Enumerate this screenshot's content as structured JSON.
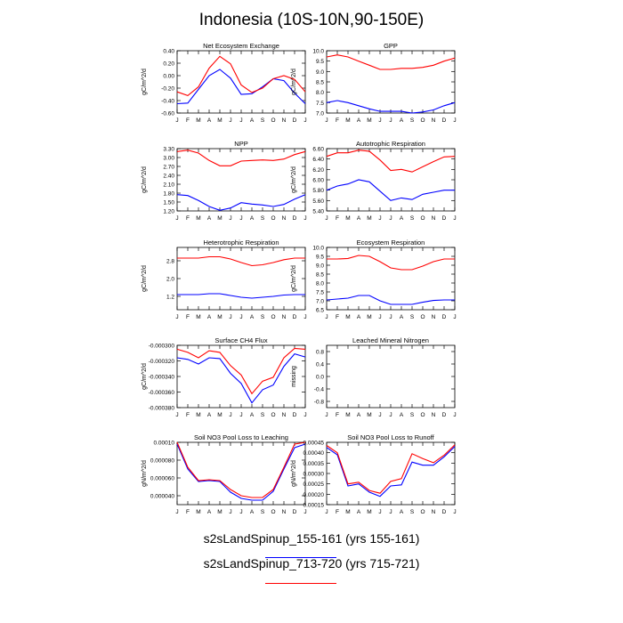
{
  "title": "Indonesia (10S-10N,90-150E)",
  "legend": [
    {
      "label": "s2sLandSpinup_155-161 (yrs 155-161)",
      "color": "#0000ff"
    },
    {
      "label": "s2sLandSpinup_713-720 (yrs 715-721)",
      "color": "#ff0000"
    }
  ],
  "chart_data": [
    {
      "type": "line",
      "title": "Net Ecosystem Exchange",
      "ylabel": "gC/m^2/d",
      "x": [
        "J",
        "F",
        "M",
        "A",
        "M",
        "J",
        "J",
        "A",
        "S",
        "O",
        "N",
        "D",
        "J"
      ],
      "ylim": [
        -0.6,
        0.4
      ],
      "yticks": [
        -0.6,
        -0.4,
        -0.2,
        0.0,
        0.2,
        0.4
      ],
      "yticklabels": [
        "-0.60",
        "-0.40",
        "-0.20",
        "0.00",
        "0.20",
        "0.40"
      ],
      "series": [
        {
          "color": "#0000ff",
          "values": [
            -0.45,
            -0.44,
            -0.22,
            0.0,
            0.1,
            -0.04,
            -0.3,
            -0.29,
            -0.18,
            -0.05,
            -0.08,
            -0.28,
            -0.45
          ]
        },
        {
          "color": "#ff0000",
          "values": [
            -0.26,
            -0.32,
            -0.18,
            0.12,
            0.31,
            0.19,
            -0.15,
            -0.27,
            -0.2,
            -0.05,
            0.0,
            -0.06,
            -0.26
          ]
        }
      ]
    },
    {
      "type": "line",
      "title": "GPP",
      "ylabel": "gC/m^2/d",
      "x": [
        "J",
        "F",
        "M",
        "A",
        "M",
        "J",
        "J",
        "A",
        "S",
        "O",
        "N",
        "D",
        "J"
      ],
      "ylim": [
        7.0,
        10.0
      ],
      "yticks": [
        7.0,
        7.5,
        8.0,
        8.5,
        9.0,
        9.5,
        10.0
      ],
      "yticklabels": [
        "7.0",
        "7.5",
        "8.0",
        "8.5",
        "9.0",
        "9.5",
        "10.0"
      ],
      "series": [
        {
          "color": "#0000ff",
          "values": [
            7.5,
            7.6,
            7.5,
            7.35,
            7.2,
            7.08,
            7.08,
            7.08,
            7.0,
            7.05,
            7.15,
            7.35,
            7.5
          ]
        },
        {
          "color": "#ff0000",
          "values": [
            9.7,
            9.8,
            9.7,
            9.5,
            9.3,
            9.1,
            9.1,
            9.15,
            9.15,
            9.2,
            9.3,
            9.5,
            9.65
          ]
        }
      ]
    },
    {
      "type": "line",
      "title": "NPP",
      "ylabel": "gC/m^2/d",
      "x": [
        "J",
        "F",
        "M",
        "A",
        "M",
        "J",
        "J",
        "A",
        "S",
        "O",
        "N",
        "D",
        "J"
      ],
      "ylim": [
        1.2,
        3.3
      ],
      "yticks": [
        1.2,
        1.5,
        1.8,
        2.1,
        2.4,
        2.7,
        3.0,
        3.3
      ],
      "yticklabels": [
        "1.20",
        "1.50",
        "1.80",
        "2.10",
        "2.40",
        "2.70",
        "3.00",
        "3.30"
      ],
      "series": [
        {
          "color": "#0000ff",
          "values": [
            1.75,
            1.72,
            1.55,
            1.35,
            1.22,
            1.3,
            1.48,
            1.43,
            1.4,
            1.35,
            1.42,
            1.6,
            1.75
          ]
        },
        {
          "color": "#ff0000",
          "values": [
            3.2,
            3.25,
            3.15,
            2.9,
            2.72,
            2.72,
            2.88,
            2.9,
            2.92,
            2.9,
            2.95,
            3.1,
            3.2
          ]
        }
      ]
    },
    {
      "type": "line",
      "title": "Autotrophic Respiration",
      "ylabel": "gC/m^2/d",
      "x": [
        "J",
        "F",
        "M",
        "A",
        "M",
        "J",
        "J",
        "A",
        "S",
        "O",
        "N",
        "D",
        "J"
      ],
      "ylim": [
        5.4,
        6.6
      ],
      "yticks": [
        5.4,
        5.6,
        5.8,
        6.0,
        6.2,
        6.4,
        6.6
      ],
      "yticklabels": [
        "5.40",
        "5.60",
        "5.80",
        "6.00",
        "6.20",
        "6.40",
        "6.60"
      ],
      "series": [
        {
          "color": "#0000ff",
          "values": [
            5.8,
            5.88,
            5.92,
            6.0,
            5.96,
            5.78,
            5.6,
            5.65,
            5.62,
            5.72,
            5.76,
            5.8,
            5.8
          ]
        },
        {
          "color": "#ff0000",
          "values": [
            6.45,
            6.52,
            6.52,
            6.57,
            6.55,
            6.38,
            6.18,
            6.2,
            6.15,
            6.25,
            6.35,
            6.44,
            6.45
          ]
        }
      ]
    },
    {
      "type": "line",
      "title": "Heterotrophic Respiration",
      "ylabel": "gC/m^2/d",
      "x": [
        "J",
        "F",
        "M",
        "A",
        "M",
        "J",
        "J",
        "A",
        "S",
        "O",
        "N",
        "D",
        "J"
      ],
      "ylim": [
        0.6,
        3.4
      ],
      "yticks": [
        1.2,
        2.0,
        2.8
      ],
      "yticklabels": [
        "1.2",
        "2.0",
        "2.8"
      ],
      "series": [
        {
          "color": "#0000ff",
          "values": [
            1.28,
            1.28,
            1.28,
            1.32,
            1.32,
            1.24,
            1.16,
            1.12,
            1.16,
            1.2,
            1.26,
            1.28,
            1.28
          ]
        },
        {
          "color": "#ff0000",
          "values": [
            2.92,
            2.92,
            2.92,
            2.98,
            2.98,
            2.88,
            2.72,
            2.58,
            2.62,
            2.72,
            2.85,
            2.92,
            2.92
          ]
        }
      ]
    },
    {
      "type": "line",
      "title": "Ecosystem Respiration",
      "ylabel": "gC/m^2/d",
      "x": [
        "J",
        "F",
        "M",
        "A",
        "M",
        "J",
        "J",
        "A",
        "S",
        "O",
        "N",
        "D",
        "J"
      ],
      "ylim": [
        6.5,
        10.0
      ],
      "yticks": [
        6.5,
        7.0,
        7.5,
        8.0,
        8.5,
        9.0,
        9.5,
        10.0
      ],
      "yticklabels": [
        "6.5",
        "7.0",
        "7.5",
        "8.0",
        "8.5",
        "9.0",
        "9.5",
        "10.0"
      ],
      "series": [
        {
          "color": "#0000ff",
          "values": [
            7.05,
            7.1,
            7.15,
            7.3,
            7.3,
            7.0,
            6.8,
            6.8,
            6.8,
            6.92,
            7.02,
            7.05,
            7.05
          ]
        },
        {
          "color": "#ff0000",
          "values": [
            9.35,
            9.35,
            9.38,
            9.55,
            9.5,
            9.2,
            8.85,
            8.75,
            8.75,
            8.95,
            9.2,
            9.35,
            9.35
          ]
        }
      ]
    },
    {
      "type": "line",
      "title": "Surface CH4 Flux",
      "ylabel": "gC/m^2/d",
      "x": [
        "J",
        "F",
        "M",
        "A",
        "M",
        "J",
        "J",
        "A",
        "S",
        "O",
        "N",
        "D",
        "J"
      ],
      "ylim": [
        -0.00038,
        -0.0003
      ],
      "yticks": [
        -0.00038,
        -0.00036,
        -0.00034,
        -0.00032,
        -0.0003
      ],
      "yticklabels": [
        "-0.000380",
        "-0.000360",
        "-0.000340",
        "-0.000320",
        "-0.000300"
      ],
      "series": [
        {
          "color": "#0000ff",
          "values": [
            -0.000316,
            -0.000318,
            -0.000324,
            -0.000316,
            -0.000317,
            -0.000336,
            -0.000349,
            -0.000374,
            -0.000357,
            -0.000351,
            -0.000327,
            -0.000311,
            -0.000315
          ]
        },
        {
          "color": "#ff0000",
          "values": [
            -0.000305,
            -0.000309,
            -0.000316,
            -0.000307,
            -0.000309,
            -0.000326,
            -0.000338,
            -0.000362,
            -0.000346,
            -0.000341,
            -0.000316,
            -0.000304,
            -0.000305
          ]
        }
      ]
    },
    {
      "type": "line",
      "title": "Leached Mineral Nitrogen",
      "ylabel": "missing",
      "x": [
        "J",
        "F",
        "M",
        "A",
        "M",
        "J",
        "J",
        "A",
        "S",
        "O",
        "N",
        "D",
        "J"
      ],
      "ylim": [
        -1.0,
        1.0
      ],
      "yticks": [
        -0.8,
        -0.4,
        0.0,
        0.4,
        0.8
      ],
      "yticklabels": [
        "-0.8",
        "-0.4",
        "0.0",
        "0.4",
        "0.8"
      ],
      "series": []
    },
    {
      "type": "line",
      "title": "Soil NO3 Pool Loss to Leaching",
      "ylabel": "gN/m^2/d",
      "x": [
        "J",
        "F",
        "M",
        "A",
        "M",
        "J",
        "J",
        "A",
        "S",
        "O",
        "N",
        "D",
        "J"
      ],
      "ylim": [
        3e-05,
        0.0001
      ],
      "yticks": [
        4e-05,
        6e-05,
        8e-05,
        0.0001
      ],
      "yticklabels": [
        "0.000040",
        "0.000060",
        "0.000080",
        "0.00010"
      ],
      "series": [
        {
          "color": "#0000ff",
          "values": [
            9.8e-05,
            7e-05,
            5.6e-05,
            5.7e-05,
            5.6e-05,
            4.4e-05,
            3.7e-05,
            3.5e-05,
            3.5e-05,
            4.5e-05,
            7e-05,
            9.4e-05,
            9.8e-05
          ]
        },
        {
          "color": "#ff0000",
          "values": [
            0.0001,
            7.2e-05,
            5.7e-05,
            5.8e-05,
            5.7e-05,
            4.7e-05,
            4e-05,
            3.8e-05,
            3.8e-05,
            4.7e-05,
            7.2e-05,
            9.8e-05,
            0.0001
          ]
        }
      ]
    },
    {
      "type": "line",
      "title": "Soil NO3 Pool Loss to Runoff",
      "ylabel": "gN/m^2/d",
      "x": [
        "J",
        "F",
        "M",
        "A",
        "M",
        "J",
        "J",
        "A",
        "S",
        "O",
        "N",
        "D",
        "J"
      ],
      "ylim": [
        0.00015,
        0.00045
      ],
      "yticks": [
        0.00015,
        0.0002,
        0.00025,
        0.0003,
        0.00035,
        0.0004,
        0.00045
      ],
      "yticklabels": [
        "0.00015",
        "0.00020",
        "0.00025",
        "0.00030",
        "0.00035",
        "0.00040",
        "0.00045"
      ],
      "series": [
        {
          "color": "#0000ff",
          "values": [
            0.000425,
            0.00039,
            0.00024,
            0.00025,
            0.00021,
            0.00019,
            0.00024,
            0.000245,
            0.000355,
            0.00034,
            0.00034,
            0.00038,
            0.00043
          ]
        },
        {
          "color": "#ff0000",
          "values": [
            0.000435,
            0.0004,
            0.00025,
            0.000258,
            0.000218,
            0.000205,
            0.000262,
            0.000275,
            0.000395,
            0.000372,
            0.000352,
            0.000388,
            0.000438
          ]
        }
      ]
    }
  ]
}
